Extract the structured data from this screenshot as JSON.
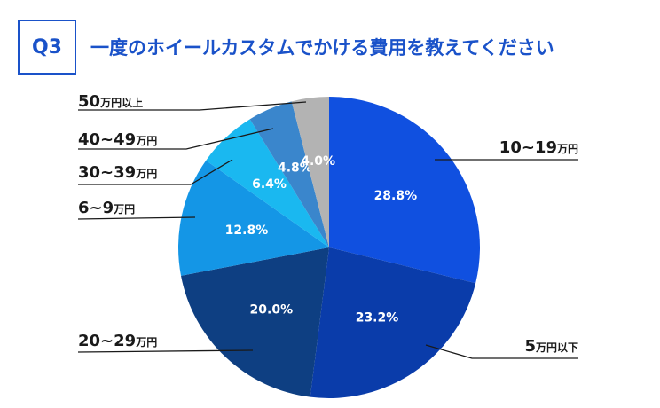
{
  "header": {
    "badge": "Q3",
    "title": "一度のホイールカスタムでかける費用を教えてください"
  },
  "chart_data": {
    "type": "pie",
    "title": "一度のホイールカスタムでかける費用を教えてください",
    "start": "12 o'clock, clockwise",
    "slices": [
      {
        "label": "10~19万円",
        "value": 28.8,
        "display": "28.8%",
        "color": "#1050e0"
      },
      {
        "label": "5万円以下",
        "value": 23.2,
        "display": "23.2%",
        "color": "#0a3caa"
      },
      {
        "label": "20~29万円",
        "value": 20.0,
        "display": "20.0%",
        "color": "#0e3f82"
      },
      {
        "label": "6~9万円",
        "value": 12.8,
        "display": "12.8%",
        "color": "#1496e6"
      },
      {
        "label": "30~39万円",
        "value": 6.4,
        "display": "6.4%",
        "color": "#1ab8f0"
      },
      {
        "label": "40~49万円",
        "value": 4.8,
        "display": "4.8%",
        "color": "#3a86cc"
      },
      {
        "label": "50万円以上",
        "value": 4.0,
        "display": "4.0%",
        "color": "#b3b3b3"
      }
    ]
  }
}
